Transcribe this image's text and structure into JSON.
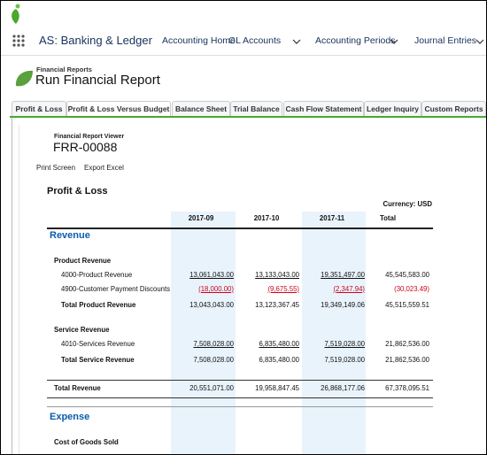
{
  "app": {
    "name": "AS: Banking & Ledger",
    "nav": [
      "Accounting Home",
      "GL Accounts",
      "Accounting Periods",
      "Journal Entries"
    ]
  },
  "header": {
    "object": "Financial Reports",
    "title": "Run Financial Report"
  },
  "tabs": [
    "Profit & Loss",
    "Profit & Loss Versus Budget",
    "Balance Sheet",
    "Trial Balance",
    "Cash Flow Statement",
    "Ledger Inquiry",
    "Custom Reports"
  ],
  "active_tab": 1,
  "viewer": {
    "label": "Financial Report Viewer",
    "id": "FRR-00088",
    "actions": [
      "Print Screen",
      "Export Excel"
    ]
  },
  "report": {
    "title": "Profit & Loss",
    "currency": "Currency: USD",
    "columns": [
      "2017-09",
      "2017-10",
      "2017-11",
      "Total"
    ],
    "rows": [
      {
        "kind": "section",
        "label": "Revenue"
      },
      {
        "kind": "group",
        "label": "Product Revenue"
      },
      {
        "kind": "account",
        "label": "4000-Product Revenue",
        "values": [
          "13,061,043.00",
          "13,133,043.00",
          "19,351,497.00",
          "45,545,583.00"
        ]
      },
      {
        "kind": "account",
        "label": "4900-Customer Payment Discounts",
        "values": [
          "(18,000.00)",
          "(9,675.55)",
          "(2,347.94)",
          "(30,023.49)"
        ]
      },
      {
        "kind": "total",
        "label": "Total Product Revenue",
        "values": [
          "13,043,043.00",
          "13,123,367.45",
          "19,349,149.06",
          "45,515,559.51"
        ]
      },
      {
        "kind": "group",
        "label": "Service Revenue"
      },
      {
        "kind": "account",
        "label": "4010-Services Revenue",
        "values": [
          "7,508,028.00",
          "6,835,480.00",
          "7,519,028.00",
          "21,862,536.00"
        ]
      },
      {
        "kind": "total",
        "label": "Total Service Revenue",
        "values": [
          "7,508,028.00",
          "6,835,480.00",
          "7,519,028.00",
          "21,862,536.00"
        ]
      },
      {
        "kind": "grand-total",
        "label": "Total Revenue",
        "values": [
          "20,551,071.00",
          "19,958,847.45",
          "26,868,177.06",
          "67,378,095.51"
        ]
      },
      {
        "kind": "section",
        "label": "Expense"
      },
      {
        "kind": "group",
        "label": "Cost of Goods Sold"
      }
    ]
  }
}
